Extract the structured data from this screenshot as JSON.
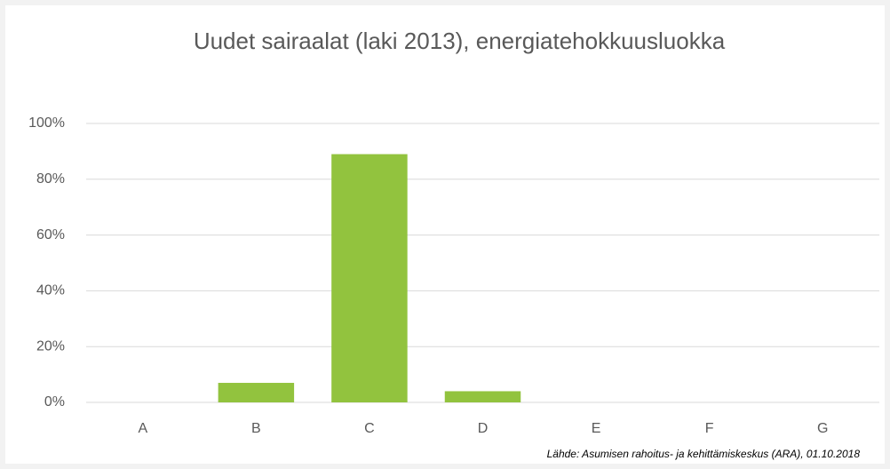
{
  "chart_data": {
    "type": "bar",
    "title": "Uudet sairaalat (laki 2013),  energiatehokkuusluokka",
    "source": "Lähde: Asumisen rahoitus-  ja kehittämiskeskus (ARA), 01.10.2018",
    "categories": [
      "A",
      "B",
      "C",
      "D",
      "E",
      "F",
      "G"
    ],
    "values": [
      0,
      7,
      89,
      4,
      0,
      0,
      0
    ],
    "color": "#92c33e",
    "ylim": [
      0,
      100
    ],
    "yticks": [
      {
        "value": 0,
        "label": "0%"
      },
      {
        "value": 20,
        "label": "20%"
      },
      {
        "value": 40,
        "label": "40%"
      },
      {
        "value": 60,
        "label": "60%"
      },
      {
        "value": 80,
        "label": "80%"
      },
      {
        "value": 100,
        "label": "100%"
      }
    ],
    "grid": true
  }
}
